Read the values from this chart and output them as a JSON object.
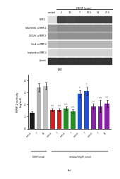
{
  "wb_labels": [
    "MMP-2",
    "SB203580 vs MMP-2",
    "UO126 vs MMP-2",
    "Sm-4 vs MMP-2",
    "Imatanib vs MMP-2",
    "β-actin"
  ],
  "dehp_header": "DEHP (ppm)",
  "dehp_conc": [
    "control",
    "2",
    "3.5",
    "7",
    "10.5",
    "14",
    "17.5"
  ],
  "band_intensities": [
    [
      0.15,
      0.82,
      0.8,
      0.82,
      0.82,
      0.82,
      0.82
    ],
    [
      0.45,
      0.5,
      0.5,
      0.5,
      0.5,
      0.5,
      0.5
    ],
    [
      0.45,
      0.48,
      0.48,
      0.48,
      0.48,
      0.48,
      0.48
    ],
    [
      0.3,
      0.32,
      0.32,
      0.32,
      0.32,
      0.32,
      0.32
    ],
    [
      0.18,
      0.2,
      0.2,
      0.2,
      0.2,
      0.2,
      0.2
    ],
    [
      0.88,
      0.88,
      0.88,
      0.88,
      0.88,
      0.88,
      0.88
    ]
  ],
  "bar_heights": [
    1.3,
    3.4,
    3.55,
    1.55,
    1.55,
    1.65,
    1.45,
    2.9,
    3.15,
    1.85,
    1.85,
    2.1
  ],
  "bar_errors": [
    0.15,
    0.35,
    0.3,
    0.12,
    0.12,
    0.18,
    0.15,
    0.3,
    0.35,
    0.2,
    0.5,
    0.3
  ],
  "bar_colors": [
    "#1a1a1a",
    "#b0b0b0",
    "#c0c0c0",
    "#cc2222",
    "#cc2222",
    "#2a8a2a",
    "#2a8a2a",
    "#2255cc",
    "#2255cc",
    "#8822aa",
    "#8822aa",
    "#8822aa"
  ],
  "x_tick_labels": [
    "control",
    "7",
    "14",
    "control",
    "7",
    "control",
    "7",
    "control",
    "7",
    "control",
    "7",
    "14"
  ],
  "xlabel_dehp": "DEHP (nmol)",
  "xlabel_inhibitor": "inhibitor(50μM) (nmol)",
  "ylabel": "MMP-2 activity\n(ng/mL)",
  "panel_label_a": "(a)",
  "panel_label_b": "(b)",
  "ylim": [
    0,
    4.5
  ],
  "yticks": [
    0,
    1,
    2,
    3,
    4
  ],
  "sig_map": {
    "3": "****",
    "4": "****",
    "5": "****",
    "6": "****",
    "7": "**",
    "8": "**",
    "9": "***",
    "10": "****",
    "11": "****"
  },
  "background_color": "#ffffff"
}
